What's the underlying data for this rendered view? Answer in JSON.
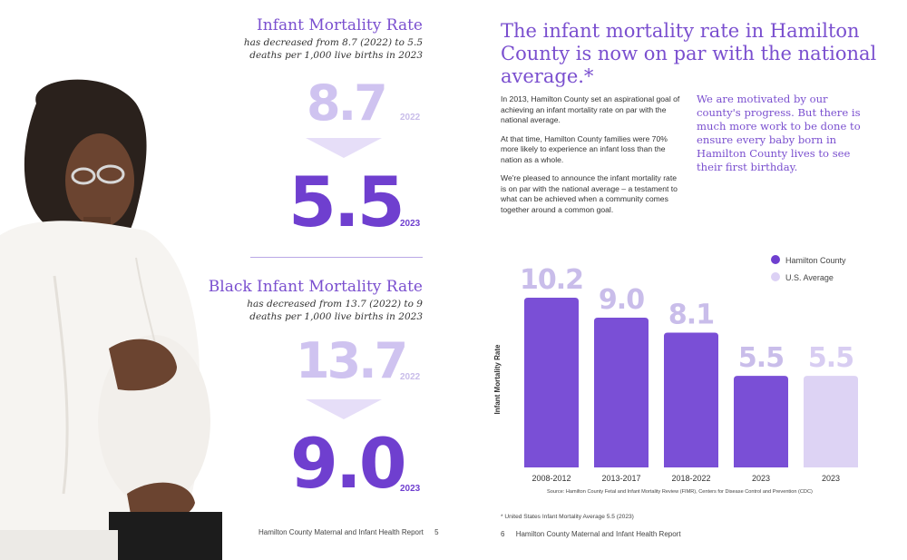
{
  "left_page": {
    "infant": {
      "title": "Infant Mortality Rate",
      "subtitle": "has decreased from 8.7 (2022) to 5.5 deaths per 1,000 live births in 2023",
      "old_value": "8.7",
      "old_year": "2022",
      "new_value": "5.5",
      "new_year": "2023"
    },
    "black_infant": {
      "title": "Black Infant Mortality Rate",
      "subtitle": "has decreased from 13.7 (2022) to 9 deaths per 1,000 live births in 2023",
      "old_value": "13.7",
      "old_year": "2022",
      "new_value": "9.0",
      "new_year": "2023"
    },
    "footer": {
      "text": "Hamilton County Maternal and Infant Health Report",
      "page": "5"
    }
  },
  "right_page": {
    "headline": "The infant mortality rate in Hamilton County is now on par with the national average.*",
    "paragraphs": [
      "In 2013, Hamilton County set an aspirational goal of achieving an infant mortality rate on par with the national average.",
      "At that time, Hamilton County families were 70% more likely to experience an infant loss than the nation as a whole.",
      "We're pleased to announce the infant mortality rate is on par with the national average – a testament to what can be achieved when a community comes together around a common goal."
    ],
    "quote": "We are motivated by our county's progress. But there is much more work to be done to ensure every baby born in Hamilton County lives to see their first birthday.",
    "footnote": "* United States Infant Mortality Average 5.5 (2023)",
    "footer": {
      "page": "6",
      "text": "Hamilton County Maternal and Infant Health Report"
    }
  },
  "chart_data": {
    "type": "bar",
    "ylabel": "Infant Mortality Rate",
    "categories": [
      "2008-2012",
      "2013-2017",
      "2018-2022",
      "2023",
      "2023"
    ],
    "values": [
      10.2,
      9.0,
      8.1,
      5.5,
      5.5
    ],
    "value_labels": [
      "10.2",
      "9.0",
      "8.1",
      "5.5",
      "5.5"
    ],
    "bar_series": [
      "Hamilton County",
      "Hamilton County",
      "Hamilton County",
      "Hamilton County",
      "U.S. Average"
    ],
    "ylim": [
      0,
      10.2
    ],
    "grid": false,
    "legend": {
      "placement": "top-right",
      "entries": [
        {
          "name": "Hamilton County",
          "color": "#6f3fcf"
        },
        {
          "name": "U.S. Average",
          "color": "#dcd1f5"
        }
      ]
    },
    "source": "Source: Hamilton County Fetal and Infant Mortality Review (FIMR), Centers for Disease Control and Prevention (CDC)",
    "colors": {
      "hamilton_bar": "#7a4fd6",
      "us_bar": "#ddd3f4",
      "hamilton_label": "#c9bdea",
      "us_label": "#d8cdf2"
    }
  }
}
